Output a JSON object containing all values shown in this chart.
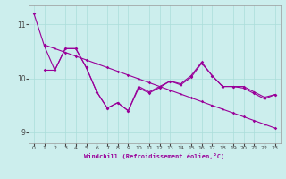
{
  "xlabel": "Windchill (Refroidissement éolien,°C)",
  "xlim": [
    -0.5,
    23.5
  ],
  "ylim": [
    8.8,
    11.35
  ],
  "yticks": [
    9,
    10,
    11
  ],
  "xticks": [
    0,
    1,
    2,
    3,
    4,
    5,
    6,
    7,
    8,
    9,
    10,
    11,
    12,
    13,
    14,
    15,
    16,
    17,
    18,
    19,
    20,
    21,
    22,
    23
  ],
  "bg_color": "#cceeed",
  "grid_color": "#aaddda",
  "line_color": "#990099",
  "line1_x": [
    0,
    1,
    2,
    3,
    4,
    5,
    6,
    7,
    8,
    9,
    10,
    11,
    12,
    13,
    14,
    15,
    16,
    17,
    18,
    19,
    20,
    21,
    22,
    23
  ],
  "line1_y": [
    11.2,
    10.6,
    10.15,
    10.55,
    10.55,
    10.2,
    9.75,
    9.45,
    9.55,
    9.4,
    9.85,
    9.75,
    9.85,
    9.95,
    9.9,
    10.05,
    10.3,
    10.05,
    9.85,
    9.85,
    9.85,
    9.75,
    9.65,
    9.7
  ],
  "line2_x": [
    1,
    2,
    3,
    4,
    5,
    6,
    7,
    8,
    9,
    10,
    11,
    12,
    13,
    14,
    15,
    16,
    17,
    18,
    19,
    20,
    21,
    22,
    23
  ],
  "line2_y": [
    10.62,
    10.55,
    10.48,
    10.41,
    10.34,
    10.27,
    10.2,
    10.13,
    10.06,
    9.99,
    9.92,
    9.85,
    9.78,
    9.71,
    9.64,
    9.57,
    9.5,
    9.43,
    9.36,
    9.29,
    9.22,
    9.15,
    9.08
  ],
  "line3_x": [
    1,
    2,
    3,
    4,
    5,
    6,
    7,
    8,
    9,
    10,
    11,
    12,
    13,
    14,
    15,
    16,
    17,
    18,
    19,
    20,
    21,
    22,
    23
  ],
  "line3_y": [
    10.15,
    10.15,
    10.55,
    10.55,
    10.2,
    9.75,
    9.45,
    9.55,
    9.4,
    9.82,
    9.73,
    9.83,
    9.95,
    9.88,
    10.02,
    10.28,
    10.05,
    9.85,
    9.85,
    9.82,
    9.72,
    9.62,
    9.7
  ]
}
